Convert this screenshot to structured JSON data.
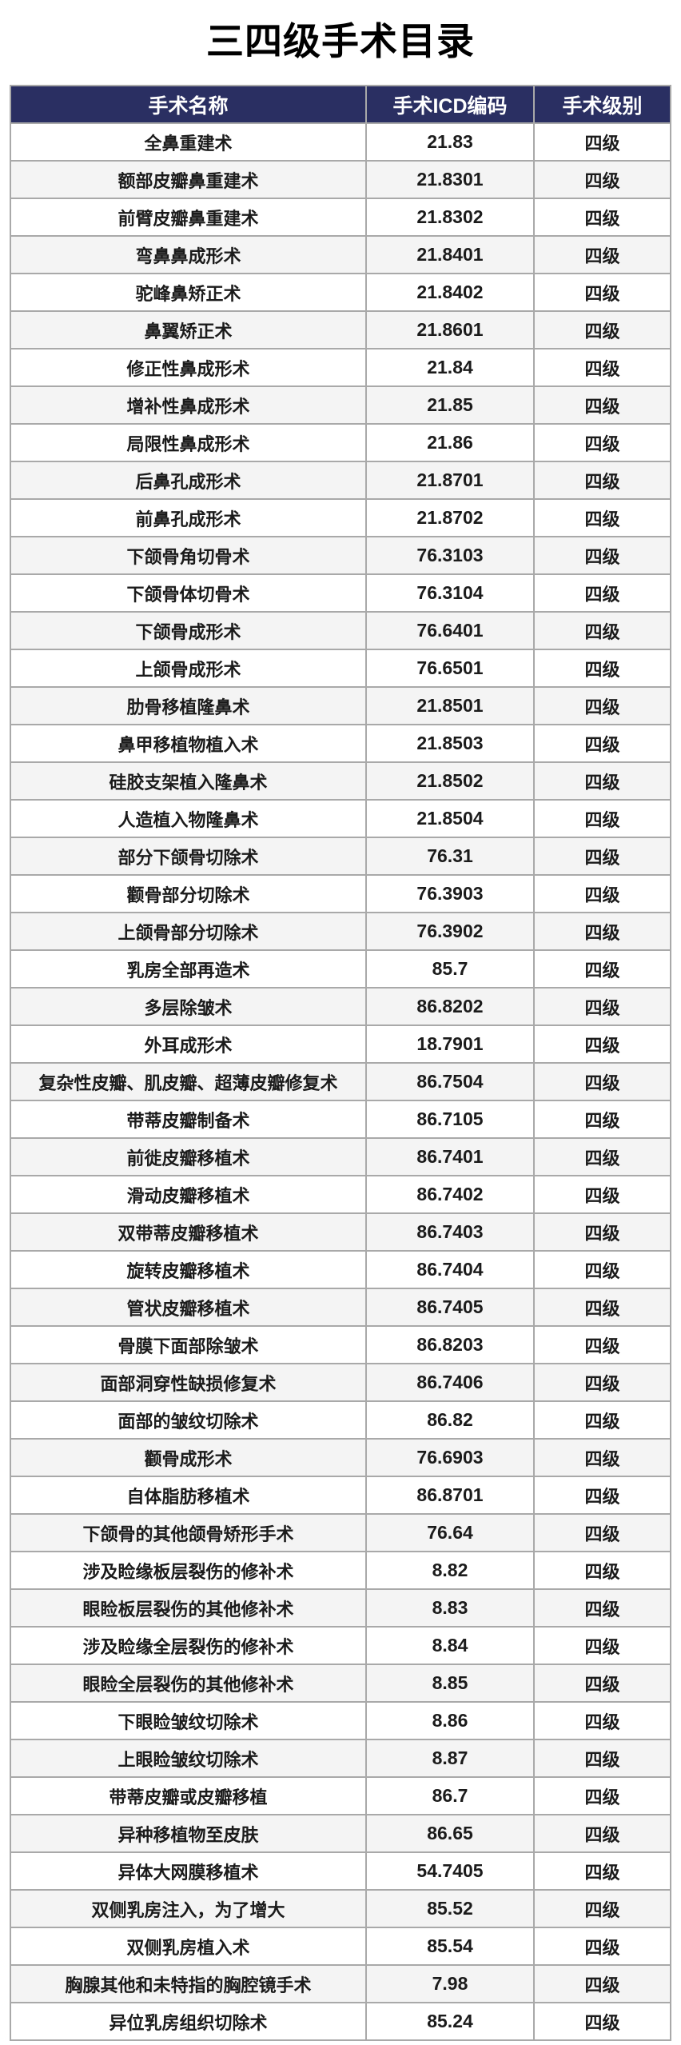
{
  "page_title": "三四级手术目录",
  "colors": {
    "header_bg": "#2a2f62",
    "header_text": "#ffffff",
    "row_white": "#ffffff",
    "row_alt": "#f4f4f4",
    "border": "#a9a9a9",
    "outer_border": "#767676",
    "body_text": "#1b1b1b"
  },
  "table": {
    "columns": [
      "手术名称",
      "手术ICD编码",
      "手术级别"
    ],
    "rows": [
      [
        "全鼻重建术",
        "21.83",
        "四级"
      ],
      [
        "额部皮瓣鼻重建术",
        "21.8301",
        "四级"
      ],
      [
        "前臂皮瓣鼻重建术",
        "21.8302",
        "四级"
      ],
      [
        "弯鼻鼻成形术",
        "21.8401",
        "四级"
      ],
      [
        "驼峰鼻矫正术",
        "21.8402",
        "四级"
      ],
      [
        "鼻翼矫正术",
        "21.8601",
        "四级"
      ],
      [
        "修正性鼻成形术",
        "21.84",
        "四级"
      ],
      [
        "增补性鼻成形术",
        "21.85",
        "四级"
      ],
      [
        "局限性鼻成形术",
        "21.86",
        "四级"
      ],
      [
        "后鼻孔成形术",
        "21.8701",
        "四级"
      ],
      [
        "前鼻孔成形术",
        "21.8702",
        "四级"
      ],
      [
        "下颌骨角切骨术",
        "76.3103",
        "四级"
      ],
      [
        "下颌骨体切骨术",
        "76.3104",
        "四级"
      ],
      [
        "下颌骨成形术",
        "76.6401",
        "四级"
      ],
      [
        "上颌骨成形术",
        "76.6501",
        "四级"
      ],
      [
        "肋骨移植隆鼻术",
        "21.8501",
        "四级"
      ],
      [
        "鼻甲移植物植入术",
        "21.8503",
        "四级"
      ],
      [
        "硅胶支架植入隆鼻术",
        "21.8502",
        "四级"
      ],
      [
        "人造植入物隆鼻术",
        "21.8504",
        "四级"
      ],
      [
        "部分下颌骨切除术",
        "76.31",
        "四级"
      ],
      [
        "颧骨部分切除术",
        "76.3903",
        "四级"
      ],
      [
        "上颌骨部分切除术",
        "76.3902",
        "四级"
      ],
      [
        "乳房全部再造术",
        "85.7",
        "四级"
      ],
      [
        "多层除皱术",
        "86.8202",
        "四级"
      ],
      [
        "外耳成形术",
        "18.7901",
        "四级"
      ],
      [
        "复杂性皮瓣、肌皮瓣、超薄皮瓣修复术",
        "86.7504",
        "四级"
      ],
      [
        "带蒂皮瓣制备术",
        "86.7105",
        "四级"
      ],
      [
        "前徙皮瓣移植术",
        "86.7401",
        "四级"
      ],
      [
        "滑动皮瓣移植术",
        "86.7402",
        "四级"
      ],
      [
        "双带蒂皮瓣移植术",
        "86.7403",
        "四级"
      ],
      [
        "旋转皮瓣移植术",
        "86.7404",
        "四级"
      ],
      [
        "管状皮瓣移植术",
        "86.7405",
        "四级"
      ],
      [
        "骨膜下面部除皱术",
        "86.8203",
        "四级"
      ],
      [
        "面部洞穿性缺损修复术",
        "86.7406",
        "四级"
      ],
      [
        "面部的皱纹切除术",
        "86.82",
        "四级"
      ],
      [
        "颧骨成形术",
        "76.6903",
        "四级"
      ],
      [
        "自体脂肪移植术",
        "86.8701",
        "四级"
      ],
      [
        "下颌骨的其他颌骨矫形手术",
        "76.64",
        "四级"
      ],
      [
        "涉及睑缘板层裂伤的修补术",
        "8.82",
        "四级"
      ],
      [
        "眼睑板层裂伤的其他修补术",
        "8.83",
        "四级"
      ],
      [
        "涉及睑缘全层裂伤的修补术",
        "8.84",
        "四级"
      ],
      [
        "眼睑全层裂伤的其他修补术",
        "8.85",
        "四级"
      ],
      [
        "下眼睑皱纹切除术",
        "8.86",
        "四级"
      ],
      [
        "上眼睑皱纹切除术",
        "8.87",
        "四级"
      ],
      [
        "带蒂皮瓣或皮瓣移植",
        "86.7",
        "四级"
      ],
      [
        "异种移植物至皮肤",
        "86.65",
        "四级"
      ],
      [
        "异体大网膜移植术",
        "54.7405",
        "四级"
      ],
      [
        "双侧乳房注入，为了增大",
        "85.52",
        "四级"
      ],
      [
        "双侧乳房植入术",
        "85.54",
        "四级"
      ],
      [
        "胸腺其他和未特指的胸腔镜手术",
        "7.98",
        "四级"
      ],
      [
        "异位乳房组织切除术",
        "85.24",
        "四级"
      ]
    ]
  }
}
